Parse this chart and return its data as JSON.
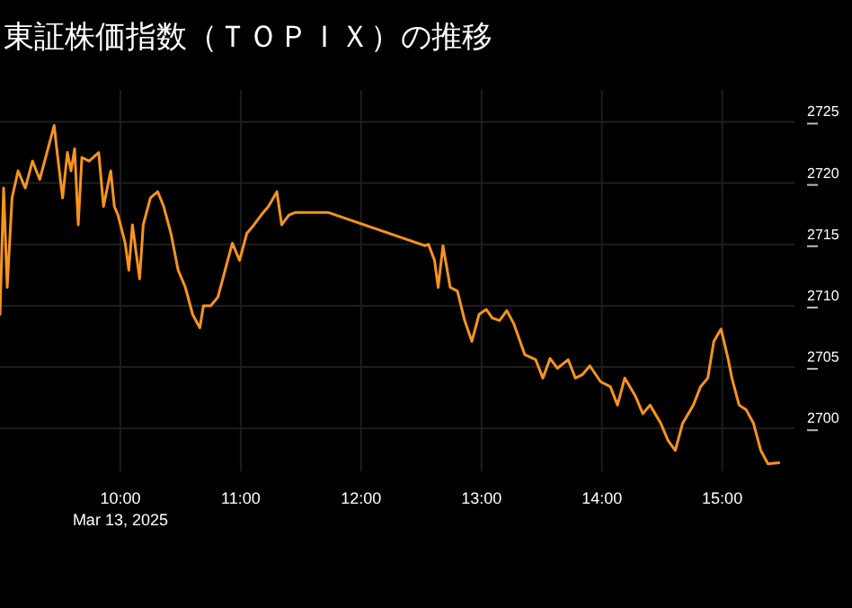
{
  "chart_data": {
    "type": "line",
    "title": "東証株価指数（ＴＯＰＩＸ）の推移",
    "x": [
      9.0,
      9.03,
      9.06,
      9.1,
      9.15,
      9.21,
      9.27,
      9.33,
      9.39,
      9.45,
      9.47,
      9.52,
      9.56,
      9.59,
      9.62,
      9.65,
      9.68,
      9.74,
      9.82,
      9.86,
      9.92,
      9.95,
      9.98,
      10.04,
      10.07,
      10.1,
      10.16,
      10.19,
      10.25,
      10.31,
      10.36,
      10.42,
      10.48,
      10.54,
      10.6,
      10.66,
      10.69,
      10.75,
      10.81,
      10.87,
      10.93,
      10.99,
      11.05,
      11.11,
      11.17,
      11.23,
      11.3,
      11.34,
      11.4,
      11.45,
      11.73,
      12.53,
      12.56,
      12.61,
      12.64,
      12.68,
      12.74,
      12.8,
      12.86,
      12.92,
      12.98,
      13.04,
      13.09,
      13.15,
      13.21,
      13.27,
      13.36,
      13.45,
      13.51,
      13.57,
      13.63,
      13.72,
      13.78,
      13.84,
      13.9,
      13.99,
      14.07,
      14.13,
      14.19,
      14.28,
      14.34,
      14.4,
      14.49,
      14.55,
      14.61,
      14.67,
      14.76,
      14.82,
      14.88,
      14.93,
      14.99,
      15.05,
      15.08,
      15.14,
      15.2,
      15.26,
      15.32,
      15.38,
      15.47
    ],
    "series": [
      {
        "color": "#f7941d",
        "values": [
          2709.3,
          2719.6,
          2711.5,
          2718.8,
          2721.0,
          2719.6,
          2721.8,
          2720.3,
          2722.5,
          2724.7,
          2722.9,
          2718.8,
          2722.5,
          2721.0,
          2722.8,
          2716.6,
          2722.1,
          2721.8,
          2722.5,
          2718.1,
          2721.0,
          2718.1,
          2717.4,
          2715.1,
          2712.9,
          2716.6,
          2712.2,
          2716.6,
          2718.8,
          2719.3,
          2718.1,
          2715.9,
          2712.9,
          2711.5,
          2709.3,
          2708.2,
          2710.0,
          2710.0,
          2710.7,
          2712.9,
          2715.1,
          2713.7,
          2715.9,
          2716.6,
          2717.4,
          2718.1,
          2719.3,
          2716.6,
          2717.4,
          2717.6,
          2717.6,
          2714.9,
          2715.0,
          2713.7,
          2711.5,
          2714.9,
          2711.5,
          2711.2,
          2708.8,
          2707.1,
          2709.3,
          2709.7,
          2709.0,
          2708.8,
          2709.6,
          2708.5,
          2706.0,
          2705.6,
          2704.1,
          2705.7,
          2704.9,
          2705.6,
          2704.1,
          2704.4,
          2705.1,
          2703.8,
          2703.4,
          2701.9,
          2704.1,
          2702.6,
          2701.2,
          2701.9,
          2700.4,
          2699.0,
          2698.2,
          2700.4,
          2701.9,
          2703.4,
          2704.1,
          2707.1,
          2708.1,
          2705.6,
          2704.1,
          2701.9,
          2701.5,
          2700.4,
          2698.2,
          2697.1,
          2697.2
        ]
      }
    ],
    "xlim": [
      9,
      15.6
    ],
    "ylim": [
      2696.5,
      2727.6
    ],
    "xticks": [
      {
        "value": 10,
        "label": "10:00\nMar 13, 2025"
      },
      {
        "value": 11,
        "label": "11:00"
      },
      {
        "value": 12,
        "label": "12:00"
      },
      {
        "value": 13,
        "label": "13:00"
      },
      {
        "value": 14,
        "label": "14:00"
      },
      {
        "value": 15,
        "label": "15:00"
      }
    ],
    "yticks": [
      2700,
      2705,
      2710,
      2715,
      2720,
      2725
    ],
    "grid": true,
    "marker": "none",
    "line_style": "solid"
  }
}
